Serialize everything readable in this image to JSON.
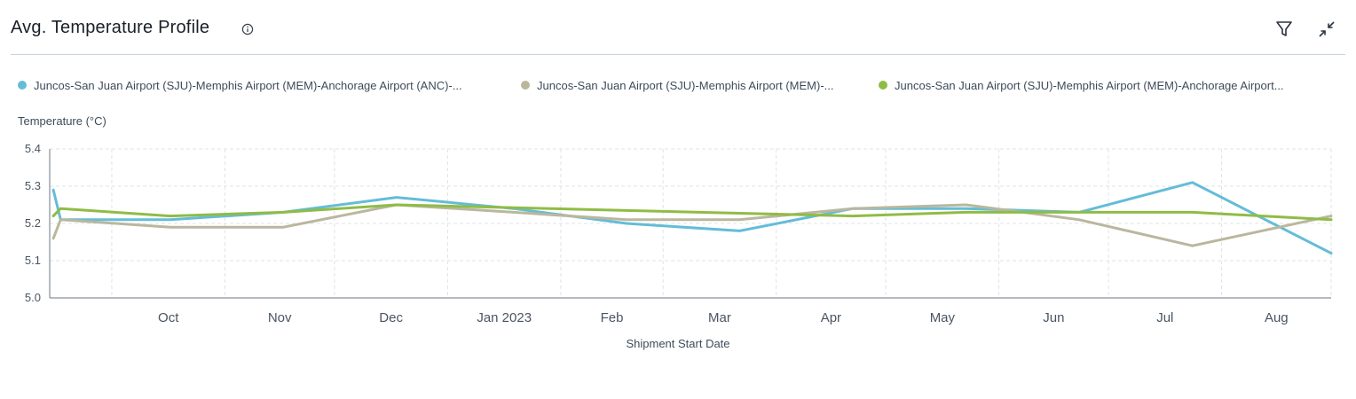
{
  "header": {
    "title": "Avg. Temperature Profile",
    "info_icon": "info-icon",
    "filter_icon": "filter-icon",
    "collapse_icon": "collapse-icon"
  },
  "legend": [
    {
      "label": "Juncos-San Juan Airport (SJU)-Memphis Airport (MEM)-Anchorage Airport (ANC)-...",
      "color": "#64bcd8"
    },
    {
      "label": "Juncos-San Juan Airport (SJU)-Memphis Airport (MEM)-...",
      "color": "#bab79e"
    },
    {
      "label": "Juncos-San Juan Airport (SJU)-Memphis Airport (MEM)-Anchorage Airport...",
      "color": "#8fbc45"
    }
  ],
  "chart_data": {
    "type": "line",
    "xlabel": "Shipment Start Date",
    "ylabel": "Temperature (°C)",
    "ylim": [
      5.0,
      5.4
    ],
    "yticks": [
      "5.0",
      "5.1",
      "5.2",
      "5.3",
      "5.4"
    ],
    "xlim": [
      "2022-09-14",
      "2023-08-31"
    ],
    "xticks": [
      {
        "label": "Oct",
        "date": "2022-10-01"
      },
      {
        "label": "Nov",
        "date": "2022-11-01"
      },
      {
        "label": "Dec",
        "date": "2022-12-01"
      },
      {
        "label": "Jan 2023",
        "date": "2023-01-01"
      },
      {
        "label": "Feb",
        "date": "2023-02-01"
      },
      {
        "label": "Mar",
        "date": "2023-03-01"
      },
      {
        "label": "Apr",
        "date": "2023-04-01"
      },
      {
        "label": "May",
        "date": "2023-05-01"
      },
      {
        "label": "Jun",
        "date": "2023-06-01"
      },
      {
        "label": "Jul",
        "date": "2023-07-01"
      },
      {
        "label": "Aug",
        "date": "2023-08-01"
      }
    ],
    "grid": true,
    "legend_position": "top",
    "series": [
      {
        "color": "#64bcd8",
        "points": [
          [
            "2022-09-15",
            5.29
          ],
          [
            "2022-09-17",
            5.21
          ],
          [
            "2022-10-17",
            5.21
          ],
          [
            "2022-11-17",
            5.23
          ],
          [
            "2022-12-18",
            5.27
          ],
          [
            "2023-01-19",
            5.24
          ],
          [
            "2023-02-19",
            5.2
          ],
          [
            "2023-03-22",
            5.18
          ],
          [
            "2023-04-22",
            5.24
          ],
          [
            "2023-05-23",
            5.24
          ],
          [
            "2023-06-23",
            5.23
          ],
          [
            "2023-07-24",
            5.31
          ],
          [
            "2023-08-31",
            5.12
          ]
        ]
      },
      {
        "color": "#bab79e",
        "points": [
          [
            "2022-09-15",
            5.16
          ],
          [
            "2022-09-17",
            5.21
          ],
          [
            "2022-10-17",
            5.19
          ],
          [
            "2022-11-17",
            5.19
          ],
          [
            "2022-12-18",
            5.25
          ],
          [
            "2023-01-19",
            5.23
          ],
          [
            "2023-02-19",
            5.21
          ],
          [
            "2023-03-22",
            5.21
          ],
          [
            "2023-04-22",
            5.24
          ],
          [
            "2023-05-23",
            5.25
          ],
          [
            "2023-06-23",
            5.21
          ],
          [
            "2023-07-24",
            5.14
          ],
          [
            "2023-08-31",
            5.22
          ]
        ]
      },
      {
        "color": "#8fbc45",
        "points": [
          [
            "2022-09-15",
            5.22
          ],
          [
            "2022-09-17",
            5.24
          ],
          [
            "2022-10-17",
            5.22
          ],
          [
            "2022-11-17",
            5.23
          ],
          [
            "2022-12-18",
            5.25
          ],
          [
            "2023-04-22",
            5.22
          ],
          [
            "2023-05-23",
            5.23
          ],
          [
            "2023-06-23",
            5.23
          ],
          [
            "2023-07-24",
            5.23
          ],
          [
            "2023-08-31",
            5.21
          ]
        ]
      }
    ]
  }
}
